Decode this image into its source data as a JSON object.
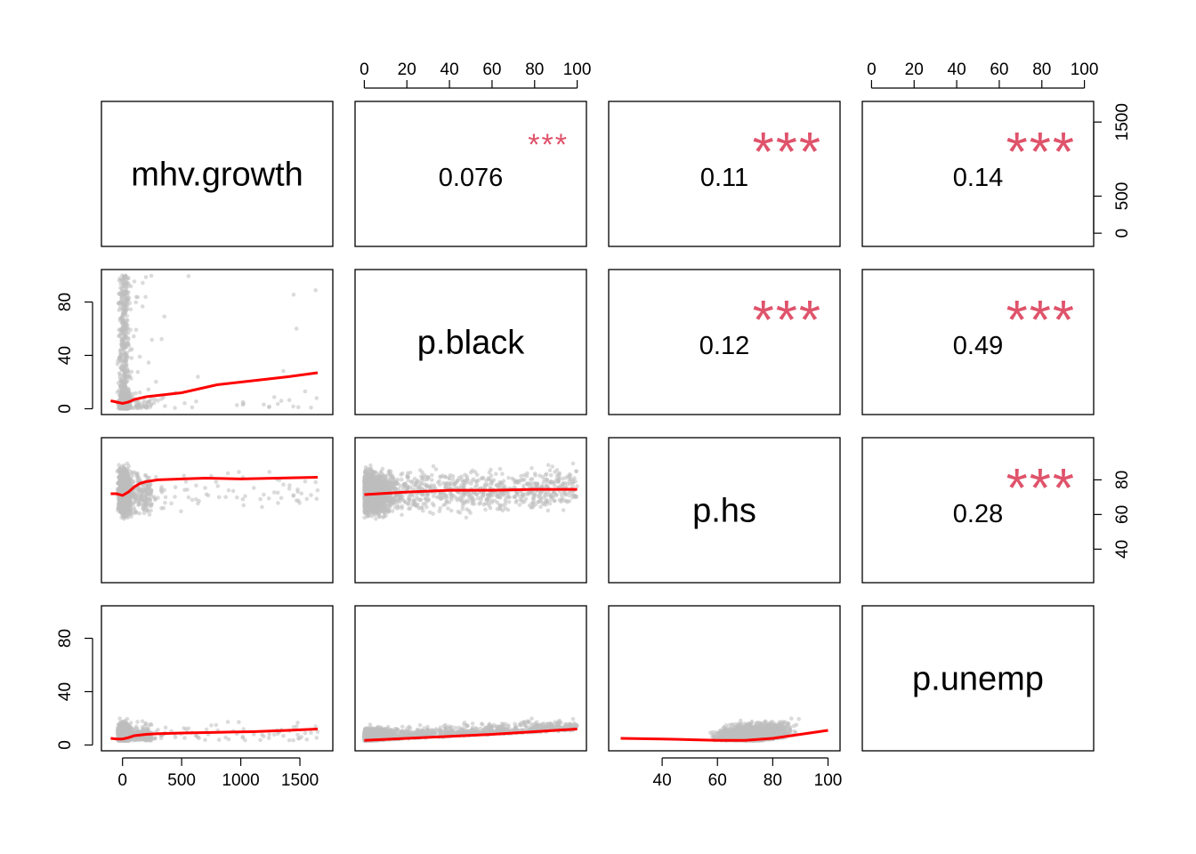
{
  "chart_data": {
    "type": "scatter-matrix",
    "variables": [
      "mhv.growth",
      "p.black",
      "p.hs",
      "p.unemp"
    ],
    "ranges": {
      "mhv.growth": [
        -100,
        1700
      ],
      "p.black": [
        0,
        100
      ],
      "p.hs": [
        24,
        101
      ],
      "p.unemp": [
        0,
        100
      ]
    },
    "axis_ticks": {
      "top_p_black": [
        "0",
        "20",
        "40",
        "60",
        "80",
        "100"
      ],
      "top_p_unemp": [
        "0",
        "20",
        "40",
        "60",
        "80",
        "100"
      ],
      "right_mhv_growth": [
        "0",
        "500",
        "1500"
      ],
      "right_p_hs": [
        "40",
        "60",
        "80"
      ],
      "left_p_black": [
        "0",
        "40",
        "80"
      ],
      "left_p_unemp": [
        "0",
        "40",
        "80"
      ],
      "bottom_mhv_growth": [
        "0",
        "500",
        "1000",
        "1500"
      ],
      "bottom_p_hs": [
        "40",
        "60",
        "80",
        "100"
      ]
    },
    "correlations": [
      {
        "row": 0,
        "col": 1,
        "value": "0.076",
        "stars": "***",
        "scale": 0.55
      },
      {
        "row": 0,
        "col": 2,
        "value": "0.11",
        "stars": "***",
        "scale": 1.0
      },
      {
        "row": 0,
        "col": 3,
        "value": "0.14",
        "stars": "***",
        "scale": 1.0
      },
      {
        "row": 1,
        "col": 2,
        "value": "0.12",
        "stars": "***",
        "scale": 1.0
      },
      {
        "row": 1,
        "col": 3,
        "value": "0.49",
        "stars": "***",
        "scale": 1.0
      },
      {
        "row": 2,
        "col": 3,
        "value": "0.28",
        "stars": "***",
        "scale": 1.0
      }
    ],
    "smoothers": [
      {
        "row": 1,
        "col": 0,
        "xvar": "mhv.growth",
        "yvar": "p.black",
        "x": [
          -100,
          -50,
          0,
          50,
          100,
          200,
          300,
          400,
          500,
          600,
          800,
          1000,
          1200,
          1400,
          1650
        ],
        "y": [
          6,
          5,
          4,
          5,
          7,
          9,
          10,
          11,
          12,
          14,
          18,
          20,
          22,
          24,
          27
        ]
      },
      {
        "row": 2,
        "col": 0,
        "xvar": "mhv.growth",
        "yvar": "p.hs",
        "x": [
          -100,
          -50,
          0,
          50,
          100,
          150,
          200,
          300,
          500,
          700,
          1000,
          1300,
          1650
        ],
        "y": [
          72,
          72,
          71,
          73,
          76,
          78,
          79,
          80,
          80.5,
          81,
          80.5,
          81,
          81.5
        ]
      },
      {
        "row": 2,
        "col": 1,
        "xvar": "p.black",
        "yvar": "p.hs",
        "x": [
          0,
          20,
          40,
          60,
          80,
          100
        ],
        "y": [
          71.5,
          73,
          74,
          74,
          74.5,
          74.5
        ]
      },
      {
        "row": 3,
        "col": 0,
        "xvar": "mhv.growth",
        "yvar": "p.unemp",
        "x": [
          -100,
          -50,
          0,
          50,
          100,
          200,
          300,
          500,
          800,
          1100,
          1400,
          1650
        ],
        "y": [
          5,
          4.5,
          4.5,
          5.5,
          7,
          8,
          8.5,
          9,
          9.5,
          10,
          11,
          12
        ]
      },
      {
        "row": 3,
        "col": 1,
        "xvar": "p.black",
        "yvar": "p.unemp",
        "x": [
          0,
          20,
          40,
          60,
          80,
          100
        ],
        "y": [
          3.5,
          5,
          6.5,
          8,
          10,
          12
        ]
      },
      {
        "row": 3,
        "col": 2,
        "xvar": "p.hs",
        "yvar": "p.unemp",
        "x": [
          25,
          40,
          50,
          60,
          70,
          80,
          90,
          100
        ],
        "y": [
          5,
          4.5,
          4,
          3.5,
          3.5,
          5,
          8,
          11
        ]
      }
    ],
    "colors": {
      "points": "#bebebe",
      "smoother": "#ff0000",
      "stars": "#df536b"
    }
  }
}
